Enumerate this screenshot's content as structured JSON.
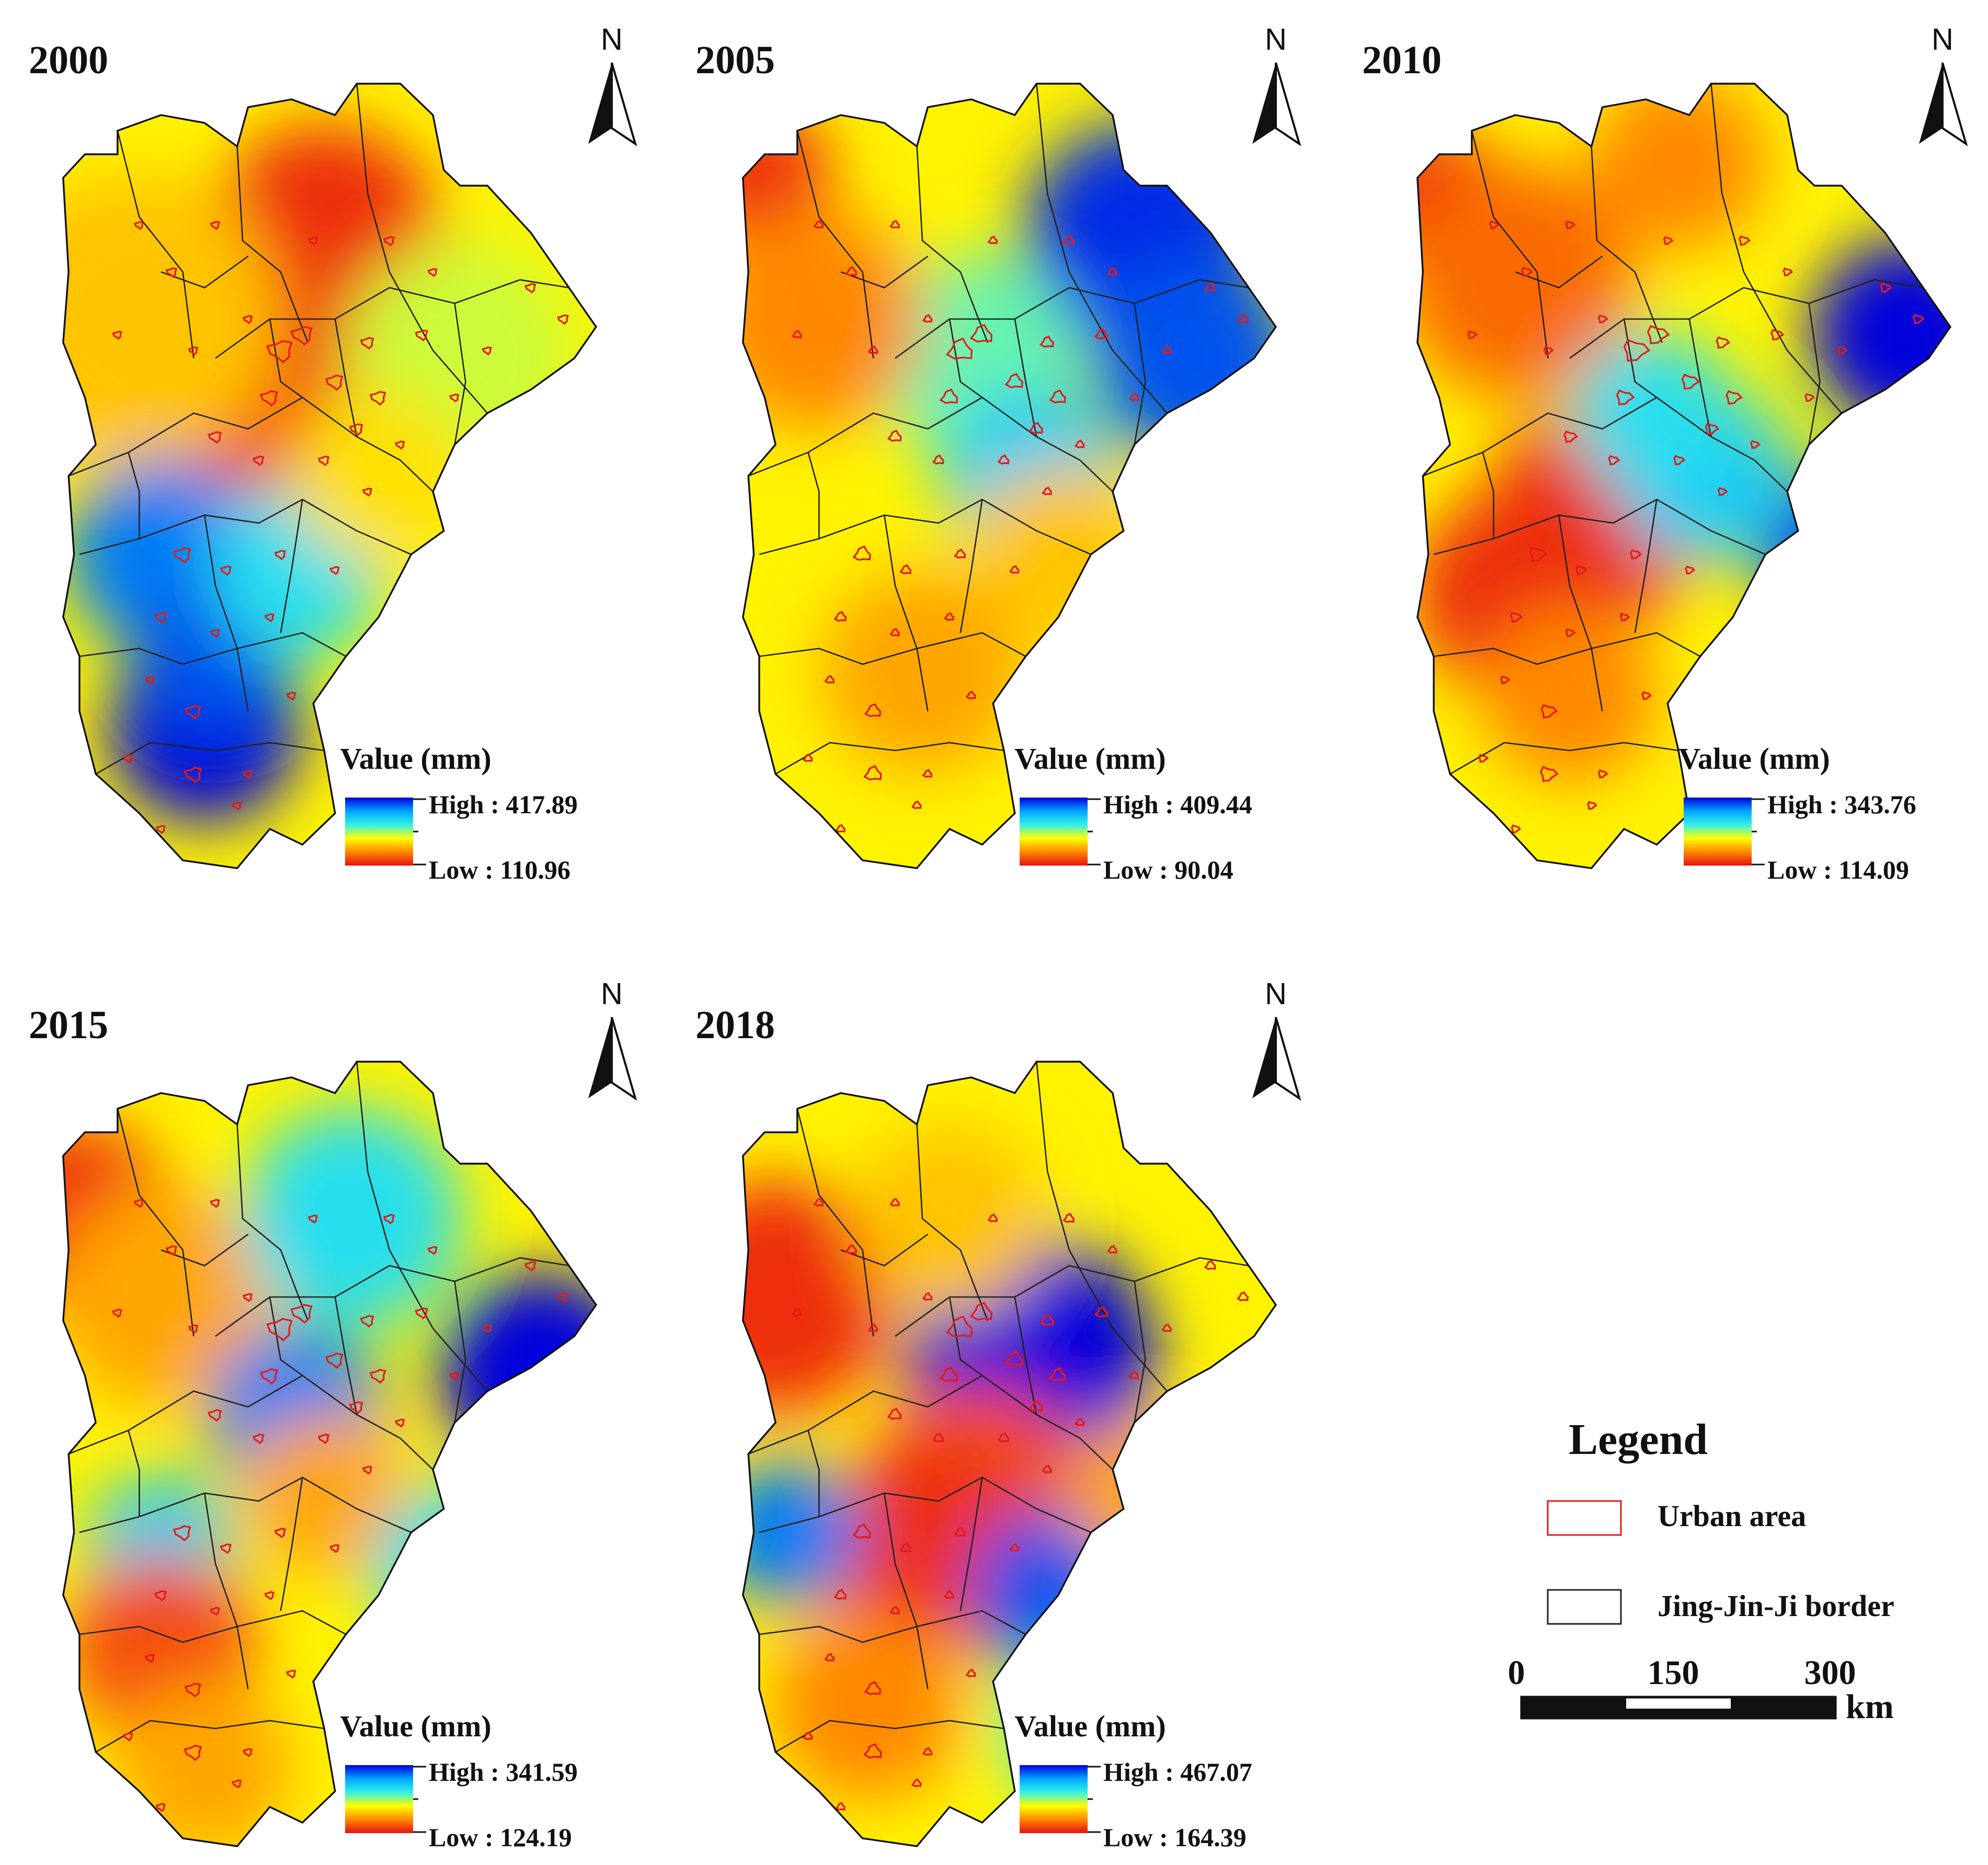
{
  "panels": [
    {
      "year": "2000",
      "value_title": "Value (mm)",
      "high_label": "High : 417.89",
      "low_label": "Low : 110.96",
      "high": 417.89,
      "low": 110.96,
      "spots": [
        [
          0.5,
          0.2,
          0.95,
          160
        ],
        [
          0.45,
          0.45,
          0.95,
          150
        ],
        [
          0.35,
          0.52,
          0.9,
          160
        ],
        [
          0.15,
          0.3,
          0.7,
          200
        ],
        [
          0.75,
          0.35,
          0.55,
          160
        ],
        [
          0.2,
          0.6,
          0.15,
          130
        ],
        [
          0.28,
          0.82,
          0.0,
          130
        ],
        [
          0.3,
          0.72,
          0.1,
          110
        ],
        [
          0.45,
          0.62,
          0.35,
          120
        ],
        [
          0.6,
          0.5,
          0.65,
          120
        ]
      ]
    },
    {
      "year": "2005",
      "value_title": "Value (mm)",
      "high_label": "High : 409.44",
      "low_label": "Low : 90.04",
      "high": 409.44,
      "low": 90.04,
      "spots": [
        [
          0.05,
          0.12,
          0.95,
          100
        ],
        [
          0.75,
          0.2,
          0.05,
          160
        ],
        [
          0.85,
          0.35,
          0.1,
          140
        ],
        [
          0.45,
          0.35,
          0.45,
          140
        ],
        [
          0.55,
          0.5,
          0.3,
          120
        ],
        [
          0.15,
          0.3,
          0.8,
          150
        ],
        [
          0.35,
          0.75,
          0.75,
          140
        ],
        [
          0.6,
          0.6,
          0.7,
          120
        ]
      ]
    },
    {
      "year": "2010",
      "value_title": "Value (mm)",
      "high_label": "High : 343.76",
      "low_label": "Low : 114.09",
      "high": 343.76,
      "low": 114.09,
      "spots": [
        [
          0.05,
          0.15,
          0.95,
          100
        ],
        [
          0.2,
          0.25,
          0.85,
          160
        ],
        [
          0.35,
          0.55,
          0.95,
          150
        ],
        [
          0.2,
          0.65,
          0.95,
          140
        ],
        [
          0.5,
          0.1,
          0.8,
          120
        ],
        [
          0.92,
          0.32,
          0.0,
          130
        ],
        [
          0.8,
          0.6,
          0.05,
          110
        ],
        [
          0.55,
          0.5,
          0.3,
          120
        ],
        [
          0.3,
          0.78,
          0.8,
          120
        ],
        [
          0.45,
          0.42,
          0.35,
          110
        ],
        [
          0.72,
          0.85,
          0.1,
          90
        ]
      ]
    },
    {
      "year": "2015",
      "value_title": "Value (mm)",
      "high_label": "High : 341.59",
      "low_label": "Low : 124.19",
      "high": 341.59,
      "low": 124.19,
      "spots": [
        [
          0.05,
          0.2,
          0.95,
          130
        ],
        [
          0.2,
          0.3,
          0.75,
          150
        ],
        [
          0.9,
          0.4,
          0.0,
          140
        ],
        [
          0.45,
          0.45,
          0.15,
          120
        ],
        [
          0.55,
          0.2,
          0.35,
          150
        ],
        [
          0.5,
          0.55,
          0.75,
          110
        ],
        [
          0.2,
          0.62,
          0.3,
          100
        ],
        [
          0.2,
          0.75,
          0.9,
          130
        ],
        [
          0.28,
          0.9,
          0.75,
          120
        ],
        [
          0.75,
          0.65,
          0.35,
          120
        ]
      ]
    },
    {
      "year": "2018",
      "value_title": "Value (mm)",
      "high_label": "High : 467.07",
      "low_label": "Low : 164.39",
      "high": 467.07,
      "low": 164.39,
      "spots": [
        [
          0.08,
          0.3,
          0.95,
          160
        ],
        [
          0.55,
          0.38,
          0.0,
          170
        ],
        [
          0.45,
          0.55,
          0.9,
          150
        ],
        [
          0.35,
          0.62,
          0.95,
          140
        ],
        [
          0.6,
          0.68,
          0.1,
          120
        ],
        [
          0.75,
          0.55,
          0.75,
          100
        ],
        [
          0.1,
          0.6,
          0.15,
          100
        ],
        [
          0.4,
          0.2,
          0.7,
          130
        ],
        [
          0.25,
          0.82,
          0.8,
          130
        ],
        [
          0.65,
          0.85,
          0.4,
          110
        ]
      ]
    }
  ],
  "north_label": "N",
  "legend": {
    "title": "Legend",
    "urban_label": "Urban area",
    "border_label": "Jing-Jin-Ji border",
    "urban_color": "#e31a1c",
    "border_color": "#222222"
  },
  "scale": {
    "tick0": "0",
    "tick1": "150",
    "tick2": "300",
    "unit": "km"
  },
  "colormap": [
    "#0000dd",
    "#00a6ff",
    "#33f0e8",
    "#ffff00",
    "#ff8800",
    "#e81010"
  ]
}
